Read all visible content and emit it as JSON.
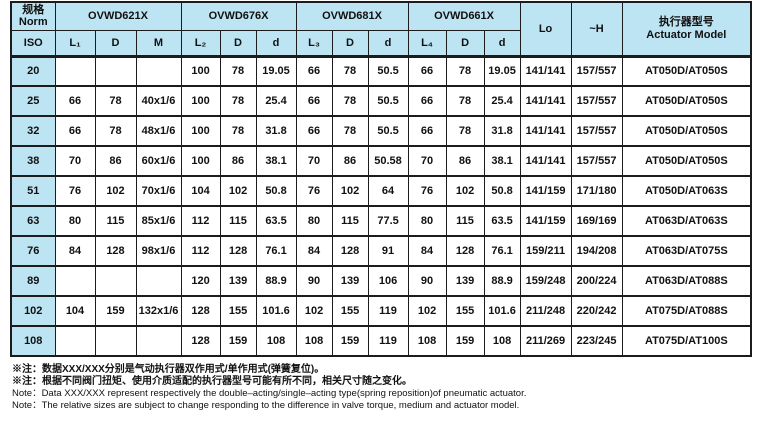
{
  "table": {
    "header": {
      "norm_zh": "规格",
      "norm_en": "Norm",
      "iso": "ISO",
      "groups": [
        {
          "label": "OVWD621X",
          "cols": [
            "L₁",
            "D",
            "M"
          ]
        },
        {
          "label": "OVWD676X",
          "cols": [
            "L₂",
            "D",
            "d"
          ]
        },
        {
          "label": "OVWD681X",
          "cols": [
            "L₃",
            "D",
            "d"
          ]
        },
        {
          "label": "OVWD661X",
          "cols": [
            "L₄",
            "D",
            "d"
          ]
        }
      ],
      "lo": "Lo",
      "h": "~H",
      "actuator_zh": "执行器型号",
      "actuator_en": "Actuator Model"
    },
    "rows": [
      {
        "iso": "20",
        "cells": [
          "",
          "",
          "",
          "100",
          "78",
          "19.05",
          "66",
          "78",
          "50.5",
          "66",
          "78",
          "19.05",
          "141/141",
          "157/557",
          "AT050D/AT050S"
        ]
      },
      {
        "iso": "25",
        "cells": [
          "66",
          "78",
          "40x1/6",
          "100",
          "78",
          "25.4",
          "66",
          "78",
          "50.5",
          "66",
          "78",
          "25.4",
          "141/141",
          "157/557",
          "AT050D/AT050S"
        ]
      },
      {
        "iso": "32",
        "cells": [
          "66",
          "78",
          "48x1/6",
          "100",
          "78",
          "31.8",
          "66",
          "78",
          "50.5",
          "66",
          "78",
          "31.8",
          "141/141",
          "157/557",
          "AT050D/AT050S"
        ]
      },
      {
        "iso": "38",
        "cells": [
          "70",
          "86",
          "60x1/6",
          "100",
          "86",
          "38.1",
          "70",
          "86",
          "50.58",
          "70",
          "86",
          "38.1",
          "141/141",
          "157/557",
          "AT050D/AT050S"
        ]
      },
      {
        "iso": "51",
        "cells": [
          "76",
          "102",
          "70x1/6",
          "104",
          "102",
          "50.8",
          "76",
          "102",
          "64",
          "76",
          "102",
          "50.8",
          "141/159",
          "171/180",
          "AT050D/AT063S"
        ]
      },
      {
        "iso": "63",
        "cells": [
          "80",
          "115",
          "85x1/6",
          "112",
          "115",
          "63.5",
          "80",
          "115",
          "77.5",
          "80",
          "115",
          "63.5",
          "141/159",
          "169/169",
          "AT063D/AT063S"
        ]
      },
      {
        "iso": "76",
        "cells": [
          "84",
          "128",
          "98x1/6",
          "112",
          "128",
          "76.1",
          "84",
          "128",
          "91",
          "84",
          "128",
          "76.1",
          "159/211",
          "194/208",
          "AT063D/AT075S"
        ]
      },
      {
        "iso": "89",
        "cells": [
          "",
          "",
          "",
          "120",
          "139",
          "88.9",
          "90",
          "139",
          "106",
          "90",
          "139",
          "88.9",
          "159/248",
          "200/224",
          "AT063D/AT088S"
        ]
      },
      {
        "iso": "102",
        "cells": [
          "104",
          "159",
          "132x1/6",
          "128",
          "155",
          "101.6",
          "102",
          "155",
          "119",
          "102",
          "155",
          "101.6",
          "211/248",
          "220/242",
          "AT075D/AT088S"
        ]
      },
      {
        "iso": "108",
        "cells": [
          "",
          "",
          "",
          "128",
          "159",
          "108",
          "108",
          "159",
          "119",
          "108",
          "159",
          "108",
          "211/269",
          "223/245",
          "AT075D/AT100S"
        ]
      }
    ]
  },
  "notes": [
    "※注：数据XXX/XXX分别是气动执行器双作用式/单作用式(弹簧复位)。",
    "※注：根据不同阀门扭矩、使用介质适配的执行器型号可能有所不同，相关尺寸随之变化。",
    "Note：Data XXX/XXX represent respectively the double–acting/single–acting type(spring reposition)of pneumatic actuator.",
    "Note：The relative sizes are subject to change responding to the difference in valve torque, medium and actuator model."
  ],
  "colors": {
    "header_bg": "#bde4f2",
    "border": "#1c1c1c",
    "text": "#111111"
  }
}
